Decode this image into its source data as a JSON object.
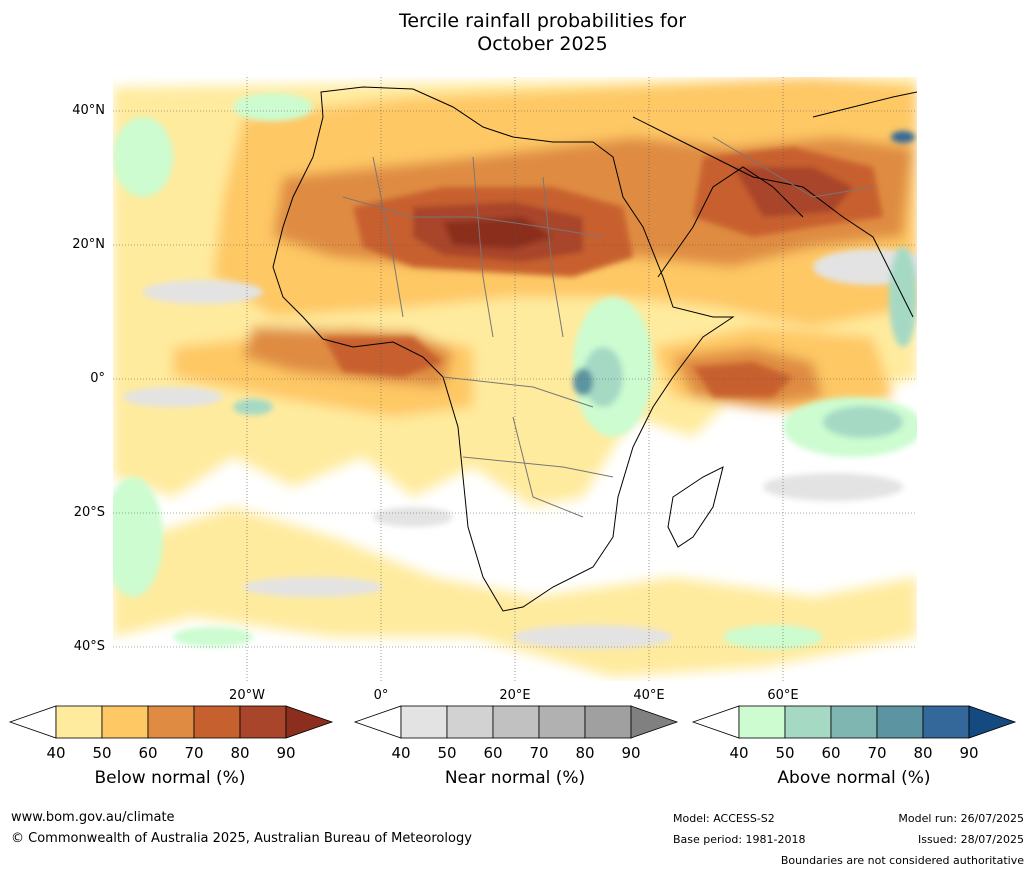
{
  "title": {
    "line1": "Tercile rainfall probabilities for",
    "line2": "October 2025"
  },
  "map": {
    "lat_labels": [
      "40°N",
      "20°N",
      "0°",
      "20°S",
      "40°S"
    ],
    "lon_labels": [
      "20°W",
      "0°",
      "20°E",
      "40°E",
      "60°E"
    ]
  },
  "colorbars": [
    {
      "label": "Below normal (%)",
      "ticks": [
        "40",
        "50",
        "60",
        "70",
        "80",
        "90"
      ],
      "colors": [
        "#ffffff",
        "#ffeb9e",
        "#fec865",
        "#df8c42",
        "#c7602f",
        "#a9452a",
        "#8b2e1d"
      ]
    },
    {
      "label": "Near normal (%)",
      "ticks": [
        "40",
        "50",
        "60",
        "70",
        "80",
        "90"
      ],
      "colors": [
        "#ffffff",
        "#e3e3e3",
        "#d2d2d2",
        "#c1c1c1",
        "#b1b1b1",
        "#a0a0a0",
        "#808080"
      ]
    },
    {
      "label": "Above normal (%)",
      "ticks": [
        "40",
        "50",
        "60",
        "70",
        "80",
        "90"
      ],
      "colors": [
        "#ffffff",
        "#ccfcd0",
        "#a6d9c4",
        "#80b6b1",
        "#5c94a1",
        "#34689a",
        "#154a80"
      ]
    }
  ],
  "footer": {
    "website": "www.bom.gov.au/climate",
    "copyright": "© Commonwealth of Australia 2025, Australian Bureau of Meteorology",
    "model": "Model: ACCESS-S2",
    "base_period": "Base period: 1981-2018",
    "model_run": "Model run: 26/07/2025",
    "issued": "Issued: 28/07/2025",
    "disclaimer": "Boundaries are not considered authoritative"
  }
}
